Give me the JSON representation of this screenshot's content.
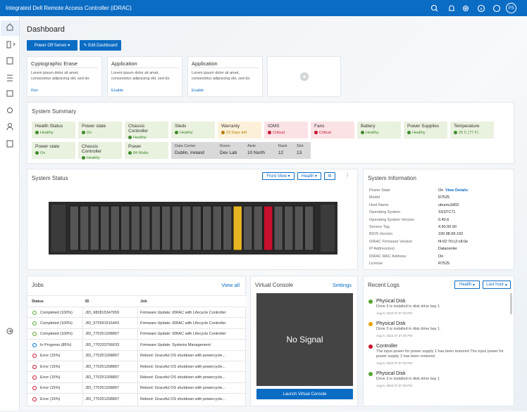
{
  "header": {
    "title": "Integrated Dell Remote Access Controller (iDRAC)",
    "avatar": "PS"
  },
  "page": {
    "title": "Dashboard",
    "buttons": [
      "Power Off Server",
      "Edit Dashboard"
    ]
  },
  "cards": [
    {
      "title": "Cyptographic Erase",
      "text": "Lorem ipsum dolor sit amet, consectetur adipiscing elit, sed do",
      "action": "Run"
    },
    {
      "title": "Application",
      "text": "Lorem ipsum dolor sit amet, consectetur adipiscing elit, sed do",
      "action": "Enable"
    },
    {
      "title": "Application",
      "text": "Lorem ipsum dolor sit amet, consectetur adipiscing elit, sed do",
      "action": "Enable"
    }
  ],
  "summary": {
    "title": "System Summary",
    "tiles": [
      {
        "label": "Health Status",
        "value": "Healthy",
        "background": "#e9f1df",
        "color": "#3f8a2c"
      },
      {
        "label": "Power state",
        "value": "On",
        "background": "#e9f1df",
        "color": "#3f8a2c"
      },
      {
        "label": "Chassis Controller",
        "value": "Healthy",
        "background": "#e9f1df",
        "color": "#3f8a2c"
      },
      {
        "label": "Sleds",
        "value": "Healthy",
        "background": "#e9f1df",
        "color": "#3f8a2c"
      },
      {
        "label": "Warranty",
        "value": "23 Days left",
        "background": "#fcf1d8",
        "color": "#b57c00"
      },
      {
        "label": "IOMS",
        "value": "Critical",
        "background": "#fbe2e5",
        "color": "#c8102e"
      },
      {
        "label": "Fans",
        "value": "Critical",
        "background": "#fbe2e5",
        "color": "#c8102e"
      },
      {
        "label": "Battery",
        "value": "Healthy",
        "background": "#e9f1df",
        "color": "#3f8a2c"
      },
      {
        "label": "Power Supplies",
        "value": "Healthy",
        "background": "#e9f1df",
        "color": "#3f8a2c"
      },
      {
        "label": "Temperature",
        "value": "25 C (77 F)",
        "background": "#e9f1df",
        "color": "#3f8a2c"
      },
      {
        "label": "Power state",
        "value": "On",
        "background": "#e9f1df",
        "color": "#3f8a2c"
      },
      {
        "label": "Chassis Controller",
        "value": "Healthy",
        "background": "#e9f1df",
        "color": "#3f8a2c"
      },
      {
        "label": "Power",
        "value": "84 Watts",
        "background": "#e9f1df",
        "color": "#3f8a2c"
      }
    ],
    "location": [
      {
        "label": "Data Center",
        "value": "Dublin, Ireland"
      },
      {
        "label": "Room",
        "value": "Dev Lab"
      },
      {
        "label": "Aisle",
        "value": "10 North"
      },
      {
        "label": "Rack",
        "value": "12"
      },
      {
        "label": "Slot",
        "value": "13"
      }
    ]
  },
  "system_status": {
    "title": "System Status",
    "view": "Front View",
    "filter": "Health"
  },
  "system_information": {
    "title": "System Information",
    "link": "View Details",
    "rows": [
      {
        "label": "Power State",
        "value": "On"
      },
      {
        "label": "Model",
        "value": "R7525"
      },
      {
        "label": "Host Name",
        "value": "ubuntu1803"
      },
      {
        "label": "Operating System",
        "value": "SSSTC71"
      },
      {
        "label": "Operating System Version",
        "value": "0.40.6"
      },
      {
        "label": "Service Tag",
        "value": "4.50.50.50"
      },
      {
        "label": "BIOS Version",
        "value": "100.98.69.192"
      },
      {
        "label": "IDRAC Firmware Version",
        "value": "f4:02:70:c2:c8:0e"
      },
      {
        "label": "IP Address(es)",
        "value": "Datacenter"
      },
      {
        "label": "IDRAC MAC Address",
        "value": "On"
      },
      {
        "label": "License",
        "value": "R7525"
      }
    ]
  },
  "jobs": {
    "title": "Jobs",
    "link": "View all",
    "columns": [
      "Status",
      "ID",
      "Job"
    ],
    "rows": [
      {
        "status": "Completed (100%)",
        "id": "JID_982815347659",
        "job": "Firmware Update: iDRAC with Lifecycle Controller",
        "color": "#5aa532"
      },
      {
        "status": "Completed (100%)",
        "id": "JID_972591516443",
        "job": "Firmware Update: iDRAC with Lifecycle Controller",
        "color": "#5aa532"
      },
      {
        "status": "Completed (100%)",
        "id": "JID_770251268897",
        "job": "Firmware Update: iDRAC with Lifecycle Controller",
        "color": "#5aa532"
      },
      {
        "status": "In Progress (85%)",
        "id": "JID_770233756633",
        "job": "Firmware Update: Systems Management",
        "color": "#0076ce"
      },
      {
        "status": "Error (15%)",
        "id": "JID_770251268897",
        "job": "Reboot: Graceful OS shutdown with powercycle...",
        "color": "#c8102e"
      },
      {
        "status": "Error (15%)",
        "id": "JID_770251268897",
        "job": "Reboot: Graceful OS shutdown with powercycle...",
        "color": "#c8102e"
      },
      {
        "status": "Error (15%)",
        "id": "JID_770251268897",
        "job": "Reboot: Graceful OS shutdown with powercycle...",
        "color": "#c8102e"
      },
      {
        "status": "Error (15%)",
        "id": "JID_770251268897",
        "job": "Reboot: Graceful OS shutdown with powercycle...",
        "color": "#c8102e"
      },
      {
        "status": "Error (15%)",
        "id": "JID_770251268897",
        "job": "Reboot: Graceful OS shutdown with powercycle...",
        "color": "#c8102e"
      }
    ]
  },
  "virtual_console": {
    "title": "Virtual Console",
    "link": "Settings",
    "screen": "No Signal",
    "button": "Launch Virtual Console"
  },
  "recent_logs": {
    "title": "Recent Logs",
    "filters": [
      "Health",
      "Last hour"
    ],
    "entries": [
      {
        "title": "Physical Disk",
        "text": "Drive 3 is installed in disk drive bay 1.",
        "time": "Aug 9, 2022 07:37:30 PM",
        "color": "#5aa532"
      },
      {
        "title": "Physical Disk",
        "text": "Drive 3 is installed in disk drive bay 1.",
        "time": "Aug 9, 2022 07:37:30 PM",
        "color": "#e6a100"
      },
      {
        "title": "Controller",
        "text": "The input power for power supply 1 has been restored The input power for power supply 1 has been restored.",
        "time": "Aug 9, 2022 07:37:30 PM",
        "color": "#c8102e"
      },
      {
        "title": "Physical Disk",
        "text": "Drive 3 is installed in disk drive bay 1.",
        "time": "Aug 9, 2022 07:37:30 PM",
        "color": "#5aa532"
      }
    ]
  }
}
